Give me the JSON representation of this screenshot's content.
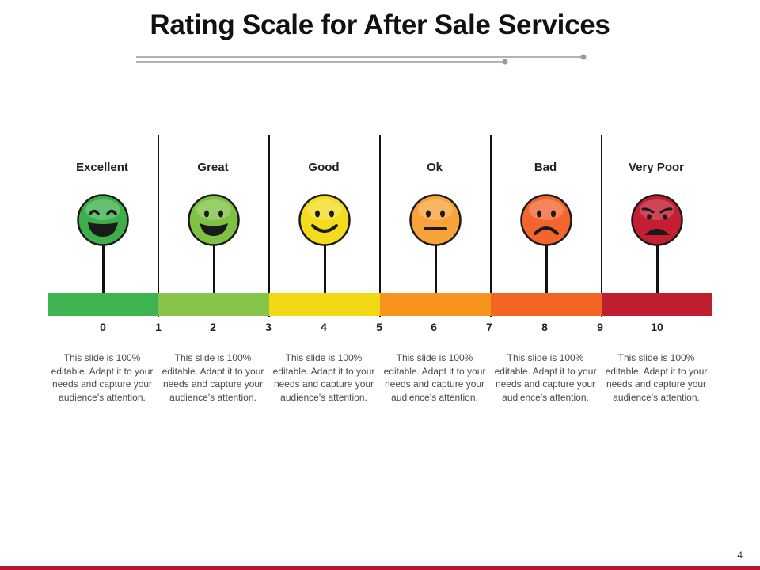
{
  "slide": {
    "title": "Rating Scale for After Sale Services",
    "page_number": "4"
  },
  "ratings": [
    {
      "label": "Excellent",
      "description": "This slide is 100% editable. Adapt it to your needs and capture your audience's attention.",
      "face_color": "#3dae4a",
      "bar_color": "#3fb34f",
      "mood": "laugh"
    },
    {
      "label": "Great",
      "description": "This slide is 100% editable. Adapt it to your needs and capture your audience's attention.",
      "face_color": "#7dc242",
      "bar_color": "#86c44a",
      "mood": "grin"
    },
    {
      "label": "Good",
      "description": "This slide is 100% editable. Adapt it to your needs and capture your audience's attention.",
      "face_color": "#f2dc1b",
      "bar_color": "#f3d816",
      "mood": "smile"
    },
    {
      "label": "Ok",
      "description": "This slide is 100% editable. Adapt it to your needs and capture your audience's attention.",
      "face_color": "#f8a23a",
      "bar_color": "#f7941e",
      "mood": "neutral"
    },
    {
      "label": "Bad",
      "description": "This slide is 100% editable. Adapt it to your needs and capture your audience's attention.",
      "face_color": "#f2652e",
      "bar_color": "#f26522",
      "mood": "sad"
    },
    {
      "label": "Very Poor",
      "description": "This slide is 100% editable. Adapt it to your needs and capture your audience's attention.",
      "face_color": "#c41e33",
      "bar_color": "#be1e2d",
      "mood": "angry"
    }
  ],
  "scale_ticks": [
    "0",
    "1",
    "2",
    "3",
    "4",
    "5",
    "6",
    "7",
    "8",
    "9",
    "10"
  ],
  "colors": {
    "footer": "#b01c2e",
    "divider": "#111111"
  }
}
